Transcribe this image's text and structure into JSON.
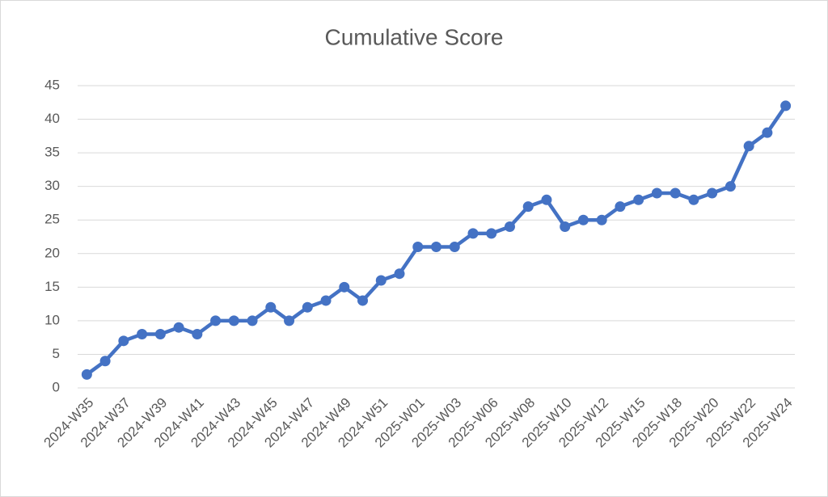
{
  "chart_data": {
    "type": "line",
    "title": "Cumulative Score",
    "categories": [
      "2024-W35",
      null,
      "2024-W37",
      null,
      "2024-W39",
      null,
      "2024-W41",
      null,
      "2024-W43",
      null,
      "2024-W45",
      null,
      "2024-W47",
      null,
      "2024-W49",
      null,
      "2024-W51",
      null,
      "2025-W01",
      null,
      "2025-W03",
      null,
      "2025-W06",
      null,
      "2025-W08",
      null,
      "2025-W10",
      null,
      "2025-W12",
      null,
      "2025-W15",
      null,
      "2025-W18",
      null,
      "2025-W20",
      null,
      "2025-W22",
      null,
      "2025-W24"
    ],
    "series": [
      {
        "name": "Cumulative Score",
        "color": "#4472c4",
        "values": [
          2,
          4,
          7,
          8,
          8,
          9,
          8,
          10,
          10,
          10,
          12,
          10,
          12,
          13,
          15,
          13,
          16,
          17,
          21,
          21,
          21,
          23,
          23,
          24,
          27,
          28,
          24,
          25,
          25,
          27,
          28,
          29,
          29,
          28,
          29,
          30,
          36,
          38,
          42
        ]
      }
    ],
    "ylim": [
      0,
      45
    ],
    "yticks": [
      0,
      5,
      10,
      15,
      20,
      25,
      30,
      35,
      40,
      45
    ],
    "grid": true
  }
}
